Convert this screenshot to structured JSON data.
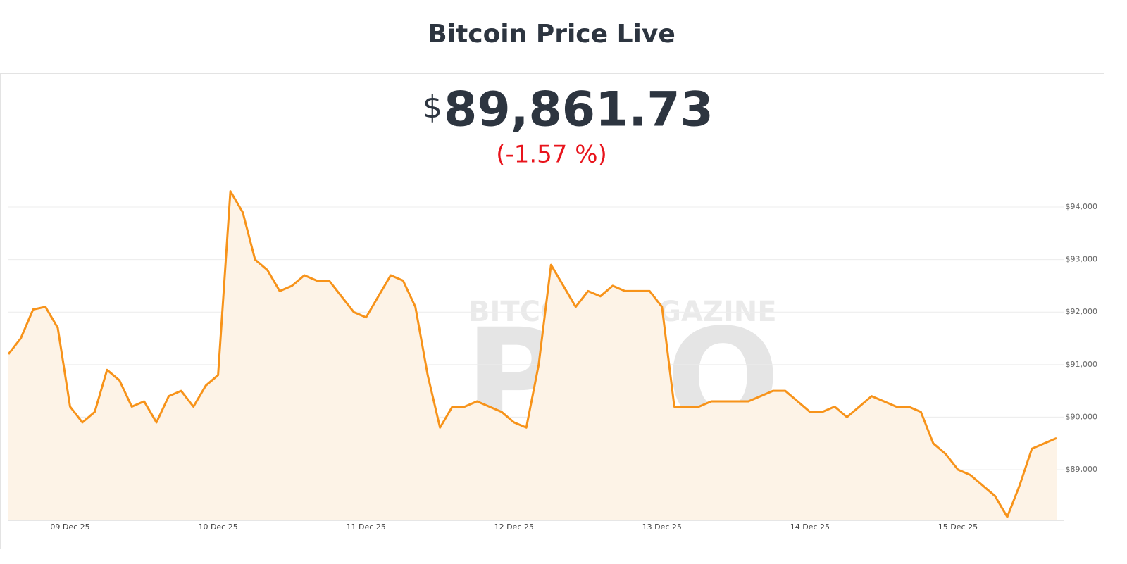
{
  "header": {
    "title": "Bitcoin Price Live"
  },
  "price": {
    "symbol": "$",
    "value": "89,861.73",
    "change": "(-1.57 %)"
  },
  "watermark": {
    "top": "BITCOIN MAGAZINE",
    "main": "PRO"
  },
  "chart_data": {
    "type": "line",
    "categories": [
      null,
      null,
      null,
      null,
      null,
      "09 Dec 25",
      null,
      null,
      null,
      null,
      null,
      null,
      null,
      null,
      null,
      null,
      null,
      "10 Dec 25",
      null,
      null,
      null,
      null,
      null,
      null,
      null,
      null,
      null,
      null,
      null,
      "11 Dec 25",
      null,
      null,
      null,
      null,
      null,
      null,
      null,
      null,
      null,
      null,
      null,
      "12 Dec 25",
      null,
      null,
      null,
      null,
      null,
      null,
      null,
      null,
      null,
      null,
      null,
      "13 Dec 25",
      null,
      null,
      null,
      null,
      null,
      null,
      null,
      null,
      null,
      null,
      null,
      "14 Dec 25",
      null,
      null,
      null,
      null,
      null,
      null,
      null,
      null,
      null,
      null,
      null,
      "15 Dec 25",
      null,
      null,
      null,
      null,
      null,
      null,
      null,
      null
    ],
    "series": [
      {
        "name": "BTC Price",
        "color": "#f7931a",
        "values": [
          91200,
          91500,
          92050,
          92100,
          91700,
          90200,
          89900,
          90100,
          90900,
          90700,
          90200,
          90300,
          89900,
          90400,
          90500,
          90200,
          90600,
          90800,
          94300,
          93900,
          93000,
          92800,
          92400,
          92500,
          92700,
          92600,
          92600,
          92300,
          92000,
          91900,
          92300,
          92700,
          92600,
          92100,
          90800,
          89800,
          90200,
          90200,
          90300,
          90200,
          90100,
          89900,
          89800,
          91000,
          92900,
          92500,
          92100,
          92400,
          92300,
          92500,
          92400,
          92400,
          92400,
          92100,
          90200,
          90200,
          90200,
          90300,
          90300,
          90300,
          90300,
          90400,
          90500,
          90500,
          90300,
          90100,
          90100,
          90200,
          90000,
          90200,
          90400,
          90300,
          90200,
          90200,
          90100,
          89500,
          89300,
          89000,
          88900,
          88700,
          88500,
          88100,
          88700,
          89400,
          89500,
          89600
        ]
      }
    ],
    "ylim": [
      88035,
      94456
    ],
    "yticks": [
      {
        "value": 89000,
        "label": "$89,000"
      },
      {
        "value": 90000,
        "label": "$90,000"
      },
      {
        "value": 91000,
        "label": "$91,000"
      },
      {
        "value": 92000,
        "label": "$92,000"
      },
      {
        "value": 93000,
        "label": "$93,000"
      },
      {
        "value": 94000,
        "label": "$94,000"
      }
    ],
    "grid": true
  }
}
